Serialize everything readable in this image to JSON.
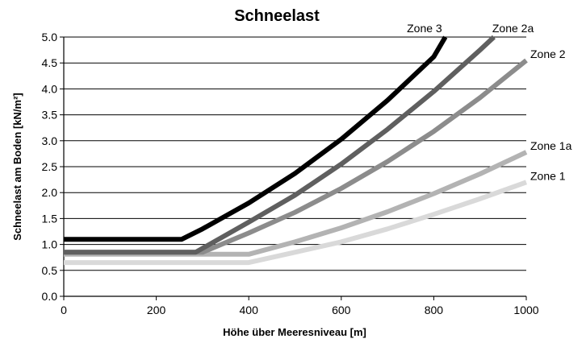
{
  "chart_data": {
    "type": "line",
    "title": "Schneelast",
    "xlabel": "Höhe über Meeresniveau [m]",
    "ylabel": "Schneelast am Boden [kN/m²]",
    "xlim": [
      0,
      1000
    ],
    "ylim": [
      0,
      5
    ],
    "xticks": [
      "0",
      "200",
      "400",
      "600",
      "800",
      "1000"
    ],
    "yticks": [
      "0.0",
      "0.5",
      "1.0",
      "1.5",
      "2.0",
      "2.5",
      "3.0",
      "3.5",
      "4.0",
      "4.5",
      "5.0"
    ],
    "grid": "horizontal",
    "legend": "labels at line ends",
    "series": [
      {
        "name": "Zone 1",
        "color": "#d9d9d9",
        "x": [
          0,
          400,
          500,
          600,
          700,
          800,
          900,
          1000
        ],
        "y": [
          0.65,
          0.65,
          0.85,
          1.05,
          1.3,
          1.58,
          1.88,
          2.2
        ]
      },
      {
        "name": "Zone 1a",
        "color": "#b3b3b3",
        "x": [
          0,
          400,
          500,
          600,
          700,
          800,
          900,
          1000
        ],
        "y": [
          0.81,
          0.81,
          1.05,
          1.32,
          1.63,
          1.98,
          2.36,
          2.78
        ]
      },
      {
        "name": "Zone 2",
        "color": "#8c8c8c",
        "x": [
          0,
          300,
          400,
          500,
          600,
          700,
          800,
          900,
          1000
        ],
        "y": [
          0.85,
          0.85,
          1.22,
          1.62,
          2.08,
          2.6,
          3.18,
          3.83,
          4.55
        ]
      },
      {
        "name": "Zone 2a",
        "color": "#5f5f5f",
        "x": [
          0,
          285,
          400,
          500,
          600,
          700,
          800,
          900,
          930
        ],
        "y": [
          0.85,
          0.85,
          1.43,
          1.95,
          2.55,
          3.22,
          3.95,
          4.75,
          5.0
        ]
      },
      {
        "name": "Zone 3",
        "color": "#000000",
        "x": [
          0,
          255,
          300,
          400,
          500,
          600,
          700,
          800,
          825
        ],
        "y": [
          1.1,
          1.1,
          1.3,
          1.8,
          2.37,
          3.03,
          3.78,
          4.62,
          5.0
        ]
      }
    ]
  }
}
